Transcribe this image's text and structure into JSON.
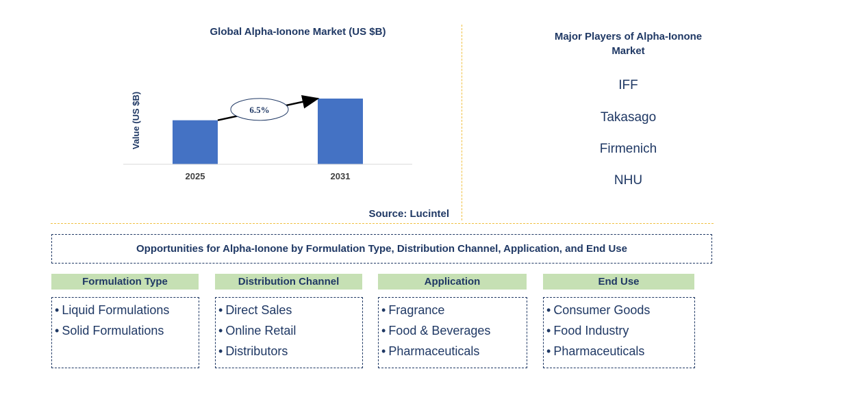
{
  "chart_data": {
    "type": "bar",
    "title": "Global Alpha-Ionone Market (US $B)",
    "ylabel": "Value (US $B)",
    "xlabel": "",
    "categories": [
      "2025",
      "2031"
    ],
    "values": [
      0.67,
      1.0
    ],
    "ylim": [
      0,
      1.0
    ],
    "grid": false,
    "annotation": {
      "label": "6.5%",
      "from": "2025",
      "to": "2031"
    },
    "bar_color": "#4472c4"
  },
  "source_text": "Source: Lucintel",
  "players": {
    "title": "Major Players of Alpha-Ionone Market",
    "names": [
      "IFF",
      "Takasago",
      "Firmenich",
      "NHU"
    ]
  },
  "opportunities": {
    "title": "Opportunities for Alpha-Ionone by Formulation Type, Distribution Channel, Application, and End Use",
    "categories": [
      {
        "heading": "Formulation Type",
        "items": [
          "Liquid Formulations",
          "Solid Formulations"
        ]
      },
      {
        "heading": "Distribution Channel",
        "items": [
          "Direct Sales",
          "Online Retail",
          "Distributors"
        ]
      },
      {
        "heading": "Application",
        "items": [
          "Fragrance",
          "Food & Beverages",
          "Pharmaceuticals"
        ]
      },
      {
        "heading": "End Use",
        "items": [
          "Consumer Goods",
          "Food Industry",
          "Pharmaceuticals"
        ]
      }
    ]
  },
  "colors": {
    "text": "#1f3864",
    "header_fill": "#c6e0b4",
    "separator": "#f0c040"
  }
}
